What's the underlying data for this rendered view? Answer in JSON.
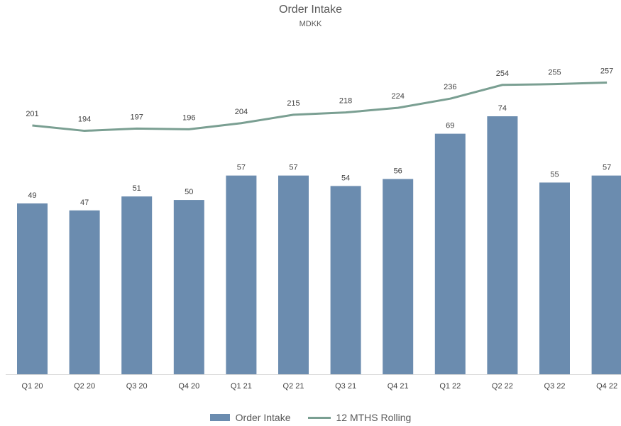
{
  "chart_data": {
    "type": "bar",
    "title": "Order Intake",
    "subtitle": "MDKK",
    "categories": [
      "Q1 20",
      "Q2 20",
      "Q3 20",
      "Q4 20",
      "Q1 21",
      "Q2 21",
      "Q3 21",
      "Q4 21",
      "Q1 22",
      "Q2 22",
      "Q3 22",
      "Q4 22"
    ],
    "series": [
      {
        "name": "Order Intake",
        "type": "bar",
        "color": "#6b8caf",
        "values": [
          49,
          47,
          51,
          50,
          57,
          57,
          54,
          56,
          69,
          74,
          55,
          57
        ]
      },
      {
        "name": "12 MTHS Rolling",
        "type": "line",
        "color": "#7a9f92",
        "values": [
          201,
          194,
          197,
          196,
          204,
          215,
          218,
          224,
          236,
          254,
          255,
          257
        ]
      }
    ],
    "bar_axis_range": [
      0,
      80
    ],
    "line_axis_range": [
      20,
      290
    ],
    "grid": false,
    "legend_position": "bottom",
    "data_labels": true
  }
}
